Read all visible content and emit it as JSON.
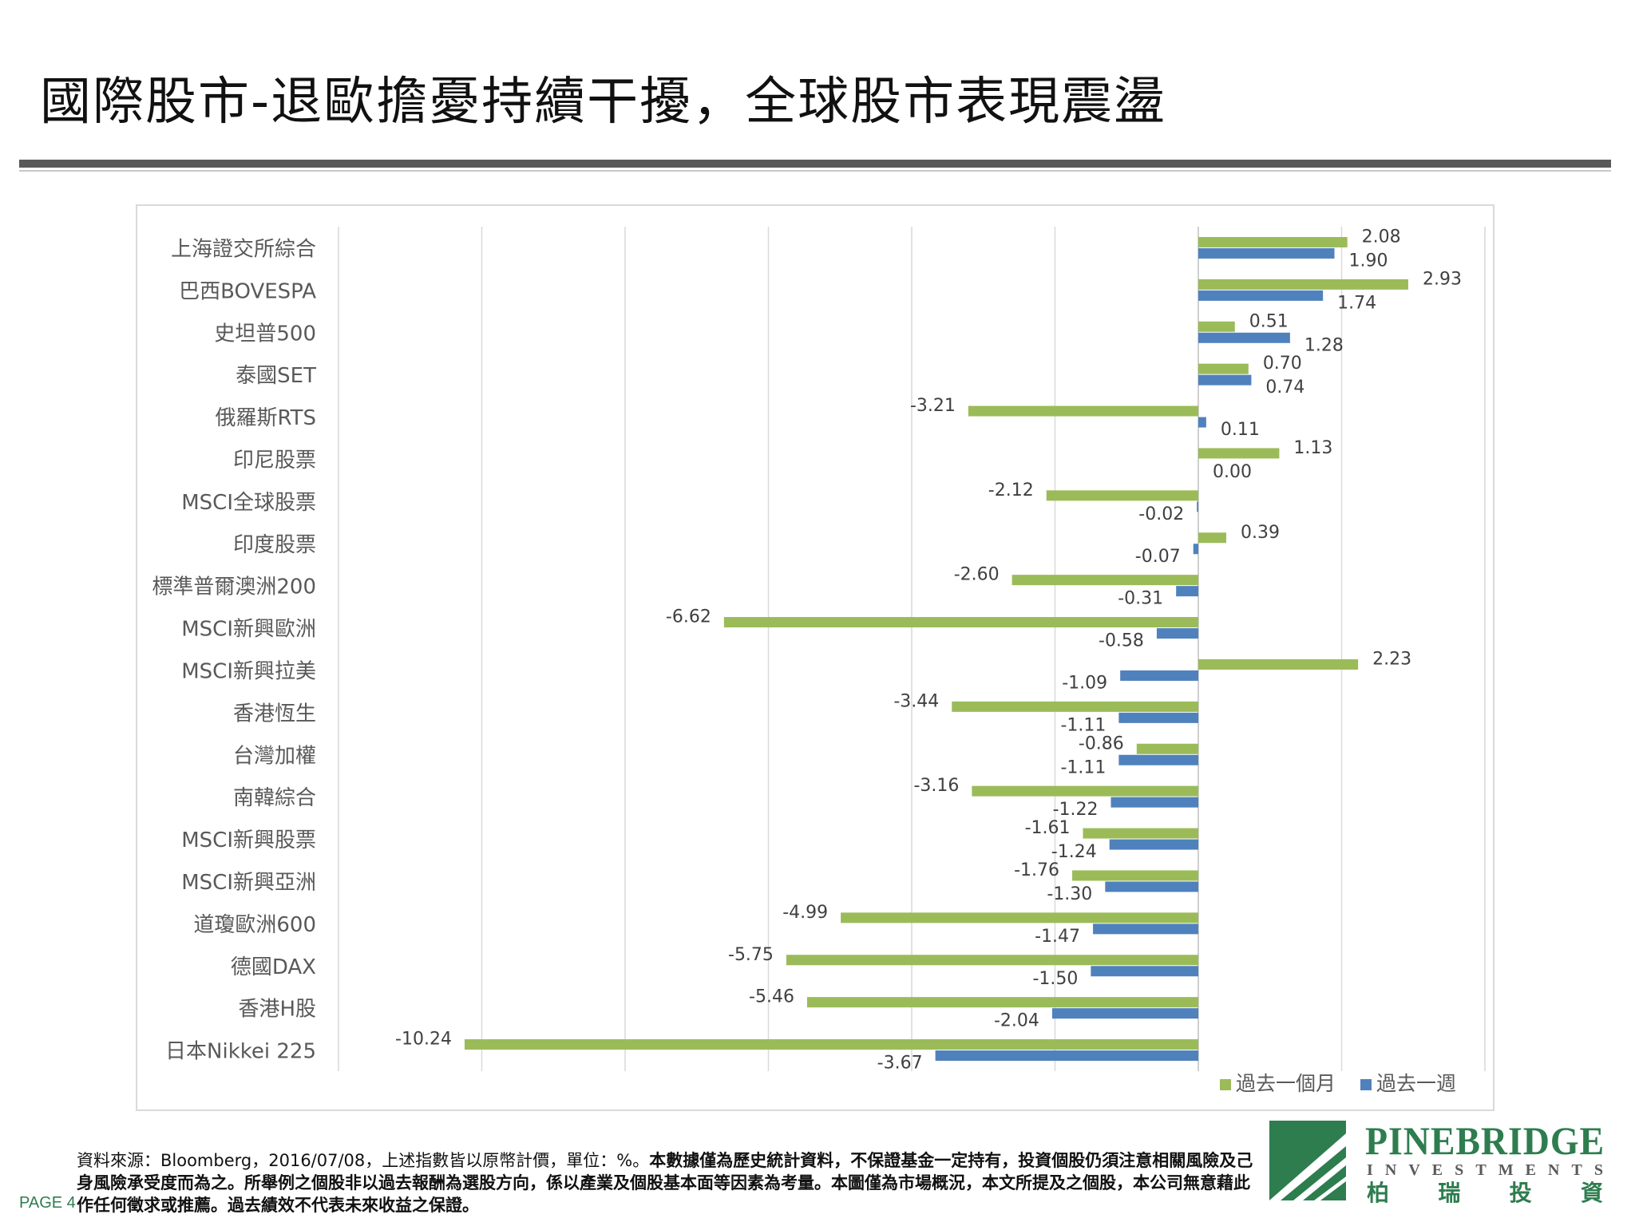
{
  "page": {
    "title": "國際股市-退歐擔憂持續干擾，全球股市表現震盪",
    "page_number": "PAGE 4"
  },
  "footer": {
    "source_text": "資料來源：Bloomberg，2016/07/08，上述指數皆以原幣計價，單位：%。",
    "disclaimer_text": "本數據僅為歷史統計資料，不保證基金一定持有，投資個股仍須注意相關風險及己身風險承受度而為之。所舉例之個股非以過去報酬為選股方向，係以產業及個股基本面等因素為考量。本圖僅為市場概況，本文所提及之個股，本公司無意藉此作任何徵求或推薦。過去績效不代表未來收益之保證。"
  },
  "logo": {
    "name": "PINEBRIDGE",
    "sub": "INVESTMENTS",
    "chinese": "柏 瑞 投 資",
    "colors": {
      "green": "#2e7d4f",
      "gray": "#5a5a5a"
    }
  },
  "colors": {
    "month": "#9bbb59",
    "week": "#4f81bd",
    "axis": "#d9d9d9",
    "rule": "#595959"
  },
  "chart_data": {
    "type": "bar",
    "orientation": "horizontal",
    "categories": [
      "上海證交所綜合",
      "巴西BOVESPA",
      "史坦普500",
      "泰國SET",
      "俄羅斯RTS",
      "印尼股票",
      "MSCI全球股票",
      "印度股票",
      "標準普爾澳洲200",
      "MSCI新興歐洲",
      "MSCI新興拉美",
      "香港恆生",
      "台灣加權",
      "南韓綜合",
      "MSCI新興股票",
      "MSCI新興亞洲",
      "道瓊歐洲600",
      "德國DAX",
      "香港H股",
      "日本Nikkei 225"
    ],
    "series": [
      {
        "name": "過去一個月",
        "color": "#9bbb59",
        "values": [
          2.08,
          2.93,
          0.51,
          0.7,
          -3.21,
          1.13,
          -2.12,
          0.39,
          -2.6,
          -6.62,
          2.23,
          -3.44,
          -0.86,
          -3.16,
          -1.61,
          -1.76,
          -4.99,
          -5.75,
          -5.46,
          -10.24
        ]
      },
      {
        "name": "過去一週",
        "color": "#4f81bd",
        "values": [
          1.9,
          1.74,
          1.28,
          0.74,
          0.11,
          0.0,
          -0.02,
          -0.07,
          -0.31,
          -0.58,
          -1.09,
          -1.11,
          -1.11,
          -1.22,
          -1.24,
          -1.3,
          -1.47,
          -1.5,
          -2.04,
          -3.67
        ]
      }
    ],
    "xlim": [
      -12,
      4
    ],
    "x_gridlines": [
      -10,
      -8,
      -6,
      -4,
      -2,
      0,
      2
    ],
    "tick_labels_shown": false,
    "legend_position": "bottom-right",
    "grid": true
  }
}
